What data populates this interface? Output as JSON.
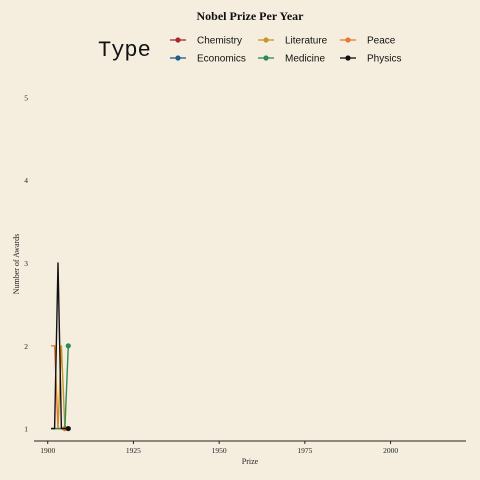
{
  "chart_data": {
    "type": "line",
    "title": "Nobel Prize Per Year",
    "xlabel": "Prize",
    "ylabel": "Number of Awards",
    "xlim": [
      1896,
      2022
    ],
    "ylim": [
      0.85,
      5.15
    ],
    "xticks": [
      1900,
      1925,
      1950,
      1975,
      2000
    ],
    "yticks": [
      1,
      2,
      3,
      4,
      5
    ],
    "grid": false,
    "legend": {
      "title": "Type",
      "position": "top"
    },
    "series": [
      {
        "name": "Chemistry",
        "color": "#a52a2a",
        "x": [
          1901,
          1902,
          1903,
          1904,
          1905
        ],
        "y": [
          1,
          1,
          1,
          1,
          1
        ]
      },
      {
        "name": "Literature",
        "color": "#c8962b",
        "x": [
          1901,
          1902,
          1903,
          1904,
          1905
        ],
        "y": [
          1,
          1,
          1,
          2,
          1
        ]
      },
      {
        "name": "Peace",
        "color": "#e8792f",
        "x": [
          1901,
          1902,
          1903,
          1904,
          1905
        ],
        "y": [
          2,
          2,
          1,
          1,
          1
        ]
      },
      {
        "name": "Economics",
        "color": "#1f5f8b",
        "x": [],
        "y": []
      },
      {
        "name": "Medicine",
        "color": "#2b8a5a",
        "x": [
          1901,
          1902,
          1903,
          1904,
          1905,
          1906
        ],
        "y": [
          1,
          1,
          1,
          1,
          1,
          2
        ]
      },
      {
        "name": "Physics",
        "color": "#111111",
        "x": [
          1901,
          1902,
          1903,
          1904,
          1905,
          1906
        ],
        "y": [
          1,
          1,
          3,
          1,
          1,
          1
        ]
      }
    ]
  }
}
